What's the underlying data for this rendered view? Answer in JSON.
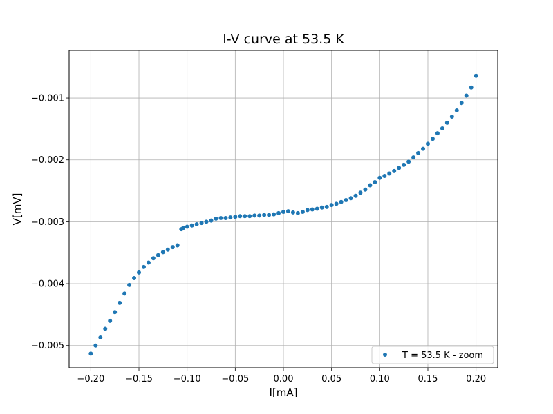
{
  "chart_data": {
    "type": "scatter",
    "title": "I-V curve at 53.5 K",
    "xlabel": "I[mA]",
    "ylabel": "V[mV]",
    "xlim": [
      -0.2225,
      0.2225
    ],
    "ylim": [
      -0.00536,
      -0.00023
    ],
    "xticks": [
      -0.2,
      -0.15,
      -0.1,
      -0.05,
      0.0,
      0.05,
      0.1,
      0.15,
      0.2
    ],
    "xtick_labels": [
      "−0.20",
      "−0.15",
      "−0.10",
      "−0.05",
      "0.00",
      "0.05",
      "0.10",
      "0.15",
      "0.20"
    ],
    "yticks": [
      -0.005,
      -0.004,
      -0.003,
      -0.002,
      -0.001
    ],
    "ytick_labels": [
      "−0.005",
      "−0.004",
      "−0.003",
      "−0.002",
      "−0.001"
    ],
    "grid": true,
    "legend_position": "lower-right",
    "series": [
      {
        "name": "T = 53.5 K - zoom",
        "color": "#1f77b4",
        "x": [
          -0.2,
          -0.195,
          -0.19,
          -0.185,
          -0.18,
          -0.175,
          -0.17,
          -0.165,
          -0.16,
          -0.155,
          -0.15,
          -0.145,
          -0.14,
          -0.135,
          -0.13,
          -0.125,
          -0.12,
          -0.115,
          -0.11,
          -0.106,
          -0.104,
          -0.1,
          -0.095,
          -0.09,
          -0.085,
          -0.08,
          -0.075,
          -0.07,
          -0.065,
          -0.06,
          -0.055,
          -0.05,
          -0.045,
          -0.04,
          -0.035,
          -0.03,
          -0.025,
          -0.02,
          -0.015,
          -0.01,
          -0.005,
          0.0,
          0.005,
          0.01,
          0.015,
          0.02,
          0.025,
          0.03,
          0.035,
          0.04,
          0.045,
          0.05,
          0.055,
          0.06,
          0.065,
          0.07,
          0.075,
          0.08,
          0.085,
          0.09,
          0.095,
          0.1,
          0.105,
          0.11,
          0.115,
          0.12,
          0.125,
          0.13,
          0.135,
          0.14,
          0.145,
          0.15,
          0.155,
          0.16,
          0.165,
          0.17,
          0.175,
          0.18,
          0.185,
          0.19,
          0.195,
          0.2
        ],
        "y": [
          -0.00513,
          -0.005,
          -0.00487,
          -0.00473,
          -0.0046,
          -0.00446,
          -0.00431,
          -0.00416,
          -0.00402,
          -0.00391,
          -0.00382,
          -0.00373,
          -0.00366,
          -0.00359,
          -0.00354,
          -0.00349,
          -0.00345,
          -0.00341,
          -0.00338,
          -0.00312,
          -0.0031,
          -0.00308,
          -0.00306,
          -0.00304,
          -0.00302,
          -0.003,
          -0.00298,
          -0.00295,
          -0.00294,
          -0.00294,
          -0.00293,
          -0.00292,
          -0.00291,
          -0.00291,
          -0.00291,
          -0.0029,
          -0.0029,
          -0.00289,
          -0.00289,
          -0.00288,
          -0.00286,
          -0.00284,
          -0.00283,
          -0.00285,
          -0.00286,
          -0.00284,
          -0.00281,
          -0.0028,
          -0.00279,
          -0.00277,
          -0.00276,
          -0.00273,
          -0.00271,
          -0.00268,
          -0.00265,
          -0.00262,
          -0.00258,
          -0.00253,
          -0.00248,
          -0.00241,
          -0.00236,
          -0.00229,
          -0.00226,
          -0.00222,
          -0.00218,
          -0.00213,
          -0.00208,
          -0.00203,
          -0.00196,
          -0.00189,
          -0.00182,
          -0.00174,
          -0.00166,
          -0.00157,
          -0.00149,
          -0.0014,
          -0.0013,
          -0.0012,
          -0.00108,
          -0.00096,
          -0.00083,
          -0.00064
        ]
      }
    ]
  }
}
